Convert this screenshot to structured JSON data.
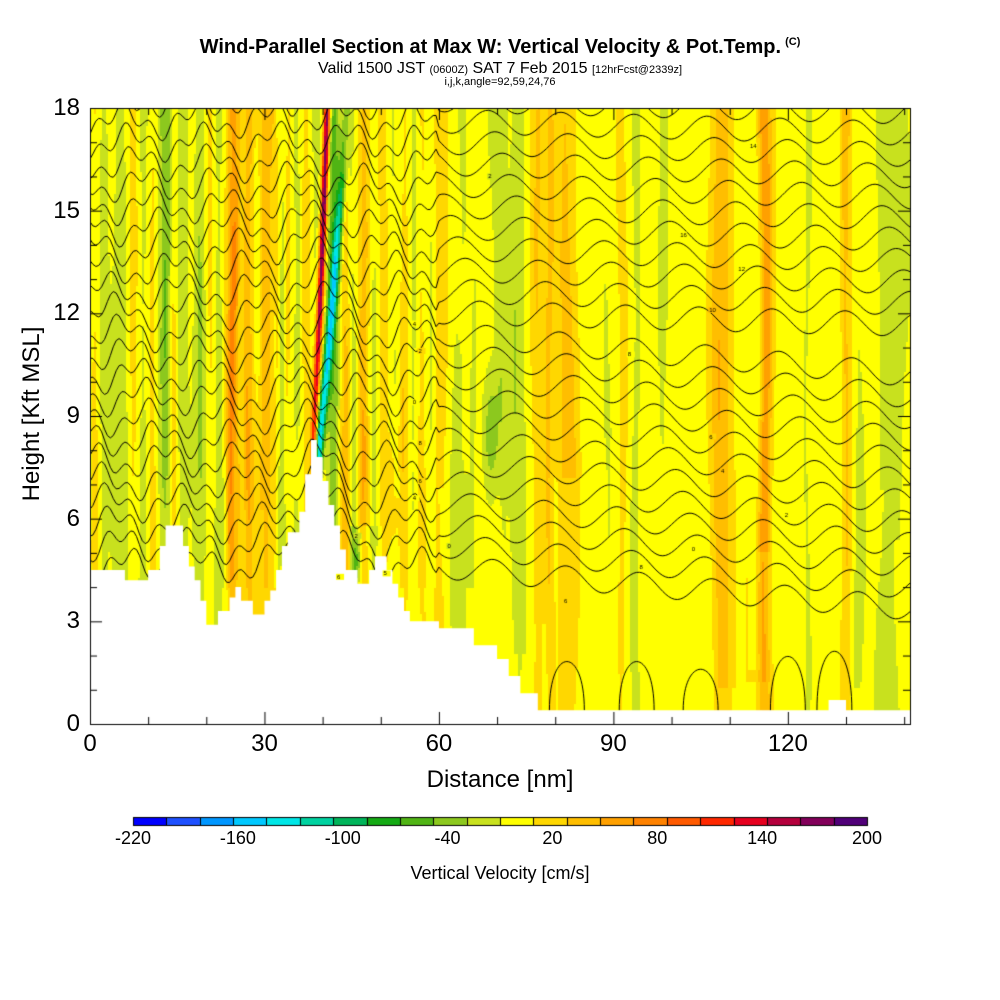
{
  "title": {
    "main": "Wind-Parallel Section at Max W: Vertical Velocity & Pot.Temp.",
    "main_sup": "(C)",
    "valid_prefix": "Valid 1500 JST",
    "valid_utc": "(0600Z)",
    "valid_date": "SAT 7 Feb 2015",
    "forecast": "[12hrFcst@2339z]",
    "indices": "i,j,k,angle=92,59,24,76"
  },
  "chart_data": {
    "type": "heatmap",
    "xlabel": "Distance [nm]",
    "ylabel": "Height [Kft MSL]",
    "xlim": [
      0,
      141
    ],
    "ylim": [
      0,
      18
    ],
    "xticks": [
      0,
      30,
      60,
      90,
      120
    ],
    "yticks": [
      0,
      3,
      6,
      9,
      12,
      15,
      18
    ],
    "x_minor_step": 10,
    "y_minor_step": 1,
    "colorbar": {
      "label": "Vertical Velocity [cm/s]",
      "min": -220,
      "max": 200,
      "step": 20,
      "tick_labels": [
        -220,
        -160,
        -100,
        -40,
        20,
        80,
        140,
        200
      ],
      "colors": [
        "#0000ff",
        "#1e50ff",
        "#0096ff",
        "#00c8ff",
        "#00e6e6",
        "#00d2a0",
        "#00b45a",
        "#14aa14",
        "#50b414",
        "#8cc81e",
        "#c8e11e",
        "#ffff00",
        "#ffd700",
        "#ffbe00",
        "#ffa000",
        "#ff8200",
        "#ff5a00",
        "#ff2800",
        "#e6001e",
        "#b4003c",
        "#82005a",
        "#500078"
      ]
    },
    "terrain_kft": [
      [
        0,
        4.5
      ],
      [
        6,
        4.5
      ],
      [
        6,
        4.2
      ],
      [
        10,
        4.2
      ],
      [
        10,
        4.5
      ],
      [
        12,
        4.5
      ],
      [
        12,
        5.2
      ],
      [
        13,
        5.2
      ],
      [
        13,
        5.8
      ],
      [
        16,
        5.8
      ],
      [
        16,
        5.2
      ],
      [
        17,
        5.2
      ],
      [
        17,
        4.6
      ],
      [
        18,
        4.6
      ],
      [
        18,
        4.2
      ],
      [
        19,
        4.2
      ],
      [
        19,
        3.6
      ],
      [
        20,
        3.6
      ],
      [
        20,
        2.9
      ],
      [
        22,
        2.9
      ],
      [
        22,
        3.3
      ],
      [
        24,
        3.3
      ],
      [
        24,
        3.7
      ],
      [
        25,
        3.7
      ],
      [
        25,
        4.0
      ],
      [
        26,
        4.0
      ],
      [
        26,
        3.6
      ],
      [
        28,
        3.6
      ],
      [
        28,
        3.2
      ],
      [
        30,
        3.2
      ],
      [
        30,
        3.6
      ],
      [
        31,
        3.6
      ],
      [
        31,
        3.9
      ],
      [
        32,
        3.9
      ],
      [
        32,
        4.5
      ],
      [
        33,
        4.5
      ],
      [
        33,
        5.2
      ],
      [
        34,
        5.2
      ],
      [
        34,
        5.6
      ],
      [
        36,
        5.6
      ],
      [
        36,
        6.2
      ],
      [
        37,
        6.2
      ],
      [
        37,
        7.3
      ],
      [
        38,
        7.3
      ],
      [
        38,
        8.3
      ],
      [
        39,
        8.3
      ],
      [
        39,
        7.8
      ],
      [
        40,
        7.8
      ],
      [
        40,
        7.1
      ],
      [
        41,
        7.1
      ],
      [
        41,
        6.4
      ],
      [
        42,
        6.4
      ],
      [
        42,
        5.8
      ],
      [
        43,
        5.8
      ],
      [
        43,
        5.1
      ],
      [
        44,
        5.1
      ],
      [
        44,
        4.5
      ],
      [
        46,
        4.5
      ],
      [
        46,
        4.1
      ],
      [
        48,
        4.1
      ],
      [
        48,
        4.5
      ],
      [
        49,
        4.5
      ],
      [
        49,
        4.9
      ],
      [
        51,
        4.9
      ],
      [
        51,
        4.5
      ],
      [
        52,
        4.5
      ],
      [
        52,
        4.1
      ],
      [
        53,
        4.1
      ],
      [
        53,
        3.7
      ],
      [
        54,
        3.7
      ],
      [
        54,
        3.3
      ],
      [
        55,
        3.3
      ],
      [
        55,
        3.0
      ],
      [
        60,
        3.0
      ],
      [
        60,
        2.8
      ],
      [
        66,
        2.8
      ],
      [
        66,
        2.3
      ],
      [
        70,
        2.3
      ],
      [
        70,
        1.9
      ],
      [
        72,
        1.9
      ],
      [
        72,
        1.4
      ],
      [
        74,
        1.4
      ],
      [
        74,
        0.9
      ],
      [
        77,
        0.9
      ],
      [
        77,
        0.4
      ],
      [
        127,
        0.4
      ],
      [
        127,
        0.7
      ],
      [
        130,
        0.7
      ],
      [
        130,
        0.4
      ],
      [
        141,
        0.4
      ]
    ],
    "updraft_plume": [
      [
        38.5,
        8.5,
        140
      ],
      [
        39.5,
        12,
        180
      ],
      [
        40.2,
        15,
        200
      ],
      [
        40.8,
        18,
        190
      ]
    ],
    "downdraft_plume": [
      [
        39,
        7.3,
        -150
      ],
      [
        40.5,
        10,
        -140
      ],
      [
        42,
        13,
        -110
      ],
      [
        43.5,
        16,
        -90
      ],
      [
        44,
        18,
        -70
      ]
    ],
    "contour_label_values": [
      "16",
      "14",
      "12",
      "10",
      "8",
      "6",
      "4",
      "2",
      "0",
      "8",
      "6",
      "4",
      "2",
      "0",
      "8",
      "6",
      "4",
      "2",
      "0",
      "5",
      "6",
      "2"
    ]
  }
}
